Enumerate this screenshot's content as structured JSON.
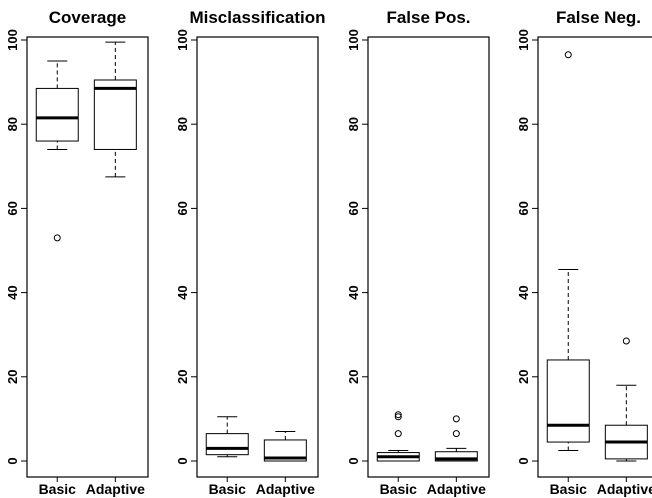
{
  "chart_data": [
    {
      "type": "boxplot",
      "title": "Coverage",
      "categories": [
        "Basic",
        "Adaptive"
      ],
      "ylim": [
        0,
        100
      ],
      "yticks": [
        "0",
        "20",
        "40",
        "60",
        "80",
        "100"
      ],
      "boxes": [
        {
          "name": "Basic",
          "whisker_low": 74,
          "q1": 76,
          "median": 81.5,
          "q3": 88.5,
          "whisker_high": 95,
          "outliers": [
            53
          ]
        },
        {
          "name": "Adaptive",
          "whisker_low": 67.5,
          "q1": 74,
          "median": 88.5,
          "q3": 90.5,
          "whisker_high": 99.5,
          "outliers": []
        }
      ]
    },
    {
      "type": "boxplot",
      "title": "Misclassification",
      "categories": [
        "Basic",
        "Adaptive"
      ],
      "ylim": [
        0,
        100
      ],
      "yticks": [
        "0",
        "20",
        "40",
        "60",
        "80",
        "100"
      ],
      "boxes": [
        {
          "name": "Basic",
          "whisker_low": 1,
          "q1": 1.5,
          "median": 3,
          "q3": 6.5,
          "whisker_high": 10.5,
          "outliers": []
        },
        {
          "name": "Adaptive",
          "whisker_low": 0,
          "q1": 0,
          "median": 0.7,
          "q3": 5,
          "whisker_high": 7,
          "outliers": []
        }
      ]
    },
    {
      "type": "boxplot",
      "title": "False Pos.",
      "categories": [
        "Basic",
        "Adaptive"
      ],
      "ylim": [
        0,
        100
      ],
      "yticks": [
        "0",
        "20",
        "40",
        "60",
        "80",
        "100"
      ],
      "boxes": [
        {
          "name": "Basic",
          "whisker_low": 0,
          "q1": 0,
          "median": 1,
          "q3": 2,
          "whisker_high": 2.5,
          "outliers": [
            6.5,
            10.5,
            11
          ]
        },
        {
          "name": "Adaptive",
          "whisker_low": 0,
          "q1": 0,
          "median": 0.5,
          "q3": 2.2,
          "whisker_high": 3,
          "outliers": [
            6.5,
            10
          ]
        }
      ]
    },
    {
      "type": "boxplot",
      "title": "False Neg.",
      "categories": [
        "Basic",
        "Adaptive"
      ],
      "ylim": [
        0,
        100
      ],
      "yticks": [
        "0",
        "20",
        "40",
        "60",
        "80",
        "100"
      ],
      "boxes": [
        {
          "name": "Basic",
          "whisker_low": 2.5,
          "q1": 4.5,
          "median": 8.5,
          "q3": 24,
          "whisker_high": 45.5,
          "outliers": [
            96.5
          ]
        },
        {
          "name": "Adaptive",
          "whisker_low": 0,
          "q1": 0.5,
          "median": 4.5,
          "q3": 8.5,
          "whisker_high": 18,
          "outliers": [
            28.5
          ]
        }
      ]
    }
  ]
}
